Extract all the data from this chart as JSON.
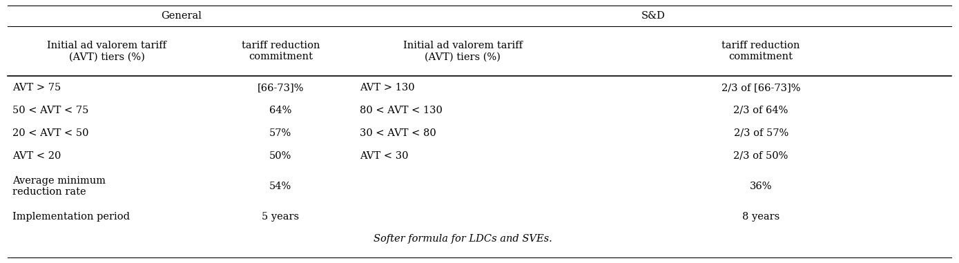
{
  "background_color": "#ffffff",
  "header1_general": "General",
  "header1_sd": "S&D",
  "header2": [
    "Initial ad valorem tariff\n(AVT) tiers (%)",
    "tariff reduction\ncommitment",
    "Initial ad valorem tariff\n(AVT) tiers (%)",
    "tariff reduction\ncommitment"
  ],
  "rows": [
    [
      "AVT > 75",
      "[66-73]%",
      "AVT > 130",
      "2/3 of [66-73]%"
    ],
    [
      "50 < AVT < 75",
      "64%",
      "80 < AVT < 130",
      "2/3 of 64%"
    ],
    [
      "20 < AVT < 50",
      "57%",
      "30 < AVT < 80",
      "2/3 of 57%"
    ],
    [
      "AVT < 20",
      "50%",
      "AVT < 30",
      "2/3 of 50%"
    ],
    [
      "Average minimum\nreduction rate",
      "54%",
      "",
      "36%"
    ],
    [
      "Implementation period",
      "5 years",
      "",
      "8 years"
    ]
  ],
  "footer": "Softer formula for LDCs and SVEs.",
  "font_size": 10.5
}
